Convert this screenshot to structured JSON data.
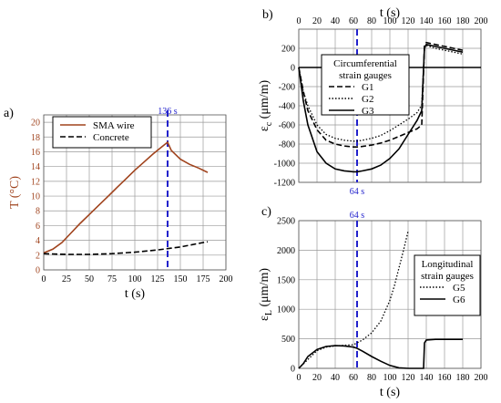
{
  "chart_data": [
    {
      "panel": "a)",
      "type": "line",
      "xlabel": "t (s)",
      "ylabel": "T (°C)",
      "xlim": [
        0,
        200
      ],
      "ylim": [
        0,
        21
      ],
      "xticks": [
        0,
        25,
        50,
        75,
        100,
        125,
        150,
        175,
        200
      ],
      "yticks": [
        0,
        2,
        4,
        6,
        8,
        10,
        12,
        14,
        16,
        18,
        20
      ],
      "grid": true,
      "legend_position": "top-left",
      "annotations": [
        {
          "x": 136,
          "label": "136 s"
        }
      ],
      "colors": {
        "sma": "#a0431d",
        "marker": "#2222cc",
        "ylabel": "#a0431d"
      },
      "series": [
        {
          "name": "SMA wire",
          "style": "solid",
          "color": "#a0431d",
          "x": [
            0,
            10,
            20,
            30,
            40,
            50,
            60,
            70,
            80,
            90,
            100,
            110,
            120,
            130,
            136,
            140,
            150,
            160,
            170,
            180
          ],
          "y": [
            2.3,
            2.8,
            3.7,
            5.0,
            6.3,
            7.5,
            8.7,
            9.9,
            11.1,
            12.3,
            13.5,
            14.6,
            15.7,
            16.7,
            17.3,
            16.2,
            15.0,
            14.3,
            13.8,
            13.2
          ]
        },
        {
          "name": "Concrete",
          "style": "dashed",
          "color": "#000000",
          "x": [
            0,
            25,
            50,
            75,
            100,
            125,
            150,
            175,
            180
          ],
          "y": [
            2.2,
            2.1,
            2.1,
            2.2,
            2.4,
            2.7,
            3.1,
            3.7,
            3.8
          ]
        }
      ]
    },
    {
      "panel": "b)",
      "type": "line",
      "xlabel": "t (s)",
      "ylabel": "εc (μm/m)",
      "ylabel_main": "ε",
      "ylabel_sub": "c",
      "ylabel_rest": " (μm/m)",
      "xlim": [
        0,
        200
      ],
      "ylim": [
        -1200,
        400
      ],
      "xticks": [
        0,
        20,
        40,
        60,
        80,
        100,
        120,
        140,
        160,
        180,
        200
      ],
      "yticks": [
        -1200,
        -1000,
        -800,
        -600,
        -400,
        -200,
        0,
        200
      ],
      "grid": true,
      "legend_title": "Circumferential\nstrain gauges",
      "legend_position": "top-center",
      "annotations": [
        {
          "x": 64,
          "label": "64 s"
        }
      ],
      "series": [
        {
          "name": "G1",
          "style": "dashed",
          "x": [
            0,
            5,
            10,
            20,
            30,
            40,
            50,
            60,
            64,
            70,
            80,
            90,
            100,
            110,
            120,
            130,
            135,
            138,
            140,
            150,
            160,
            170,
            180
          ],
          "y": [
            0,
            -250,
            -450,
            -650,
            -760,
            -800,
            -820,
            -830,
            -830,
            -825,
            -810,
            -790,
            -760,
            -720,
            -680,
            -640,
            -600,
            230,
            260,
            240,
            220,
            200,
            180
          ]
        },
        {
          "name": "G2",
          "style": "dotted",
          "x": [
            0,
            5,
            10,
            20,
            30,
            40,
            50,
            60,
            64,
            70,
            80,
            90,
            100,
            110,
            120,
            130,
            135,
            138,
            140,
            150,
            160,
            170,
            180
          ],
          "y": [
            0,
            -250,
            -400,
            -600,
            -700,
            -740,
            -760,
            -770,
            -770,
            -760,
            -740,
            -710,
            -660,
            -600,
            -540,
            -470,
            -390,
            200,
            230,
            200,
            180,
            160,
            140
          ]
        },
        {
          "name": "G3",
          "style": "solid",
          "x": [
            0,
            5,
            10,
            20,
            30,
            40,
            50,
            60,
            64,
            70,
            80,
            90,
            100,
            110,
            120,
            130,
            135,
            138,
            140,
            150,
            160,
            170,
            180
          ],
          "y": [
            0,
            -350,
            -600,
            -880,
            -1000,
            -1060,
            -1080,
            -1090,
            -1090,
            -1080,
            -1060,
            -1020,
            -950,
            -850,
            -700,
            -550,
            -450,
            210,
            240,
            220,
            200,
            180,
            160
          ]
        }
      ]
    },
    {
      "panel": "c)",
      "type": "line",
      "xlabel": "t (s)",
      "ylabel": "εL (μm/m)",
      "ylabel_main": "ε",
      "ylabel_sub": "L",
      "ylabel_rest": " (μm/m)",
      "xlim": [
        0,
        200
      ],
      "ylim": [
        0,
        2500
      ],
      "xticks": [
        0,
        20,
        40,
        60,
        80,
        100,
        120,
        140,
        160,
        180,
        200
      ],
      "yticks": [
        0,
        500,
        1000,
        1500,
        2000,
        2500
      ],
      "grid": true,
      "legend_title": "Longitudinal\nstrain gauges",
      "legend_position": "right",
      "annotations": [
        {
          "x": 64,
          "label": "64 s"
        }
      ],
      "series": [
        {
          "name": "G5",
          "style": "dotted",
          "x": [
            0,
            10,
            20,
            30,
            40,
            50,
            60,
            70,
            80,
            90,
            100,
            105,
            110,
            115,
            120
          ],
          "y": [
            0,
            150,
            300,
            360,
            380,
            390,
            400,
            480,
            600,
            800,
            1150,
            1400,
            1700,
            2000,
            2320
          ]
        },
        {
          "name": "G6",
          "style": "solid",
          "x": [
            0,
            5,
            10,
            20,
            30,
            40,
            50,
            60,
            64,
            70,
            80,
            90,
            100,
            110,
            120,
            130,
            137,
            138,
            140,
            150,
            160,
            170,
            180
          ],
          "y": [
            0,
            80,
            200,
            320,
            370,
            385,
            380,
            360,
            340,
            290,
            200,
            120,
            50,
            10,
            0,
            0,
            0,
            430,
            480,
            490,
            490,
            490,
            490
          ]
        }
      ]
    }
  ]
}
